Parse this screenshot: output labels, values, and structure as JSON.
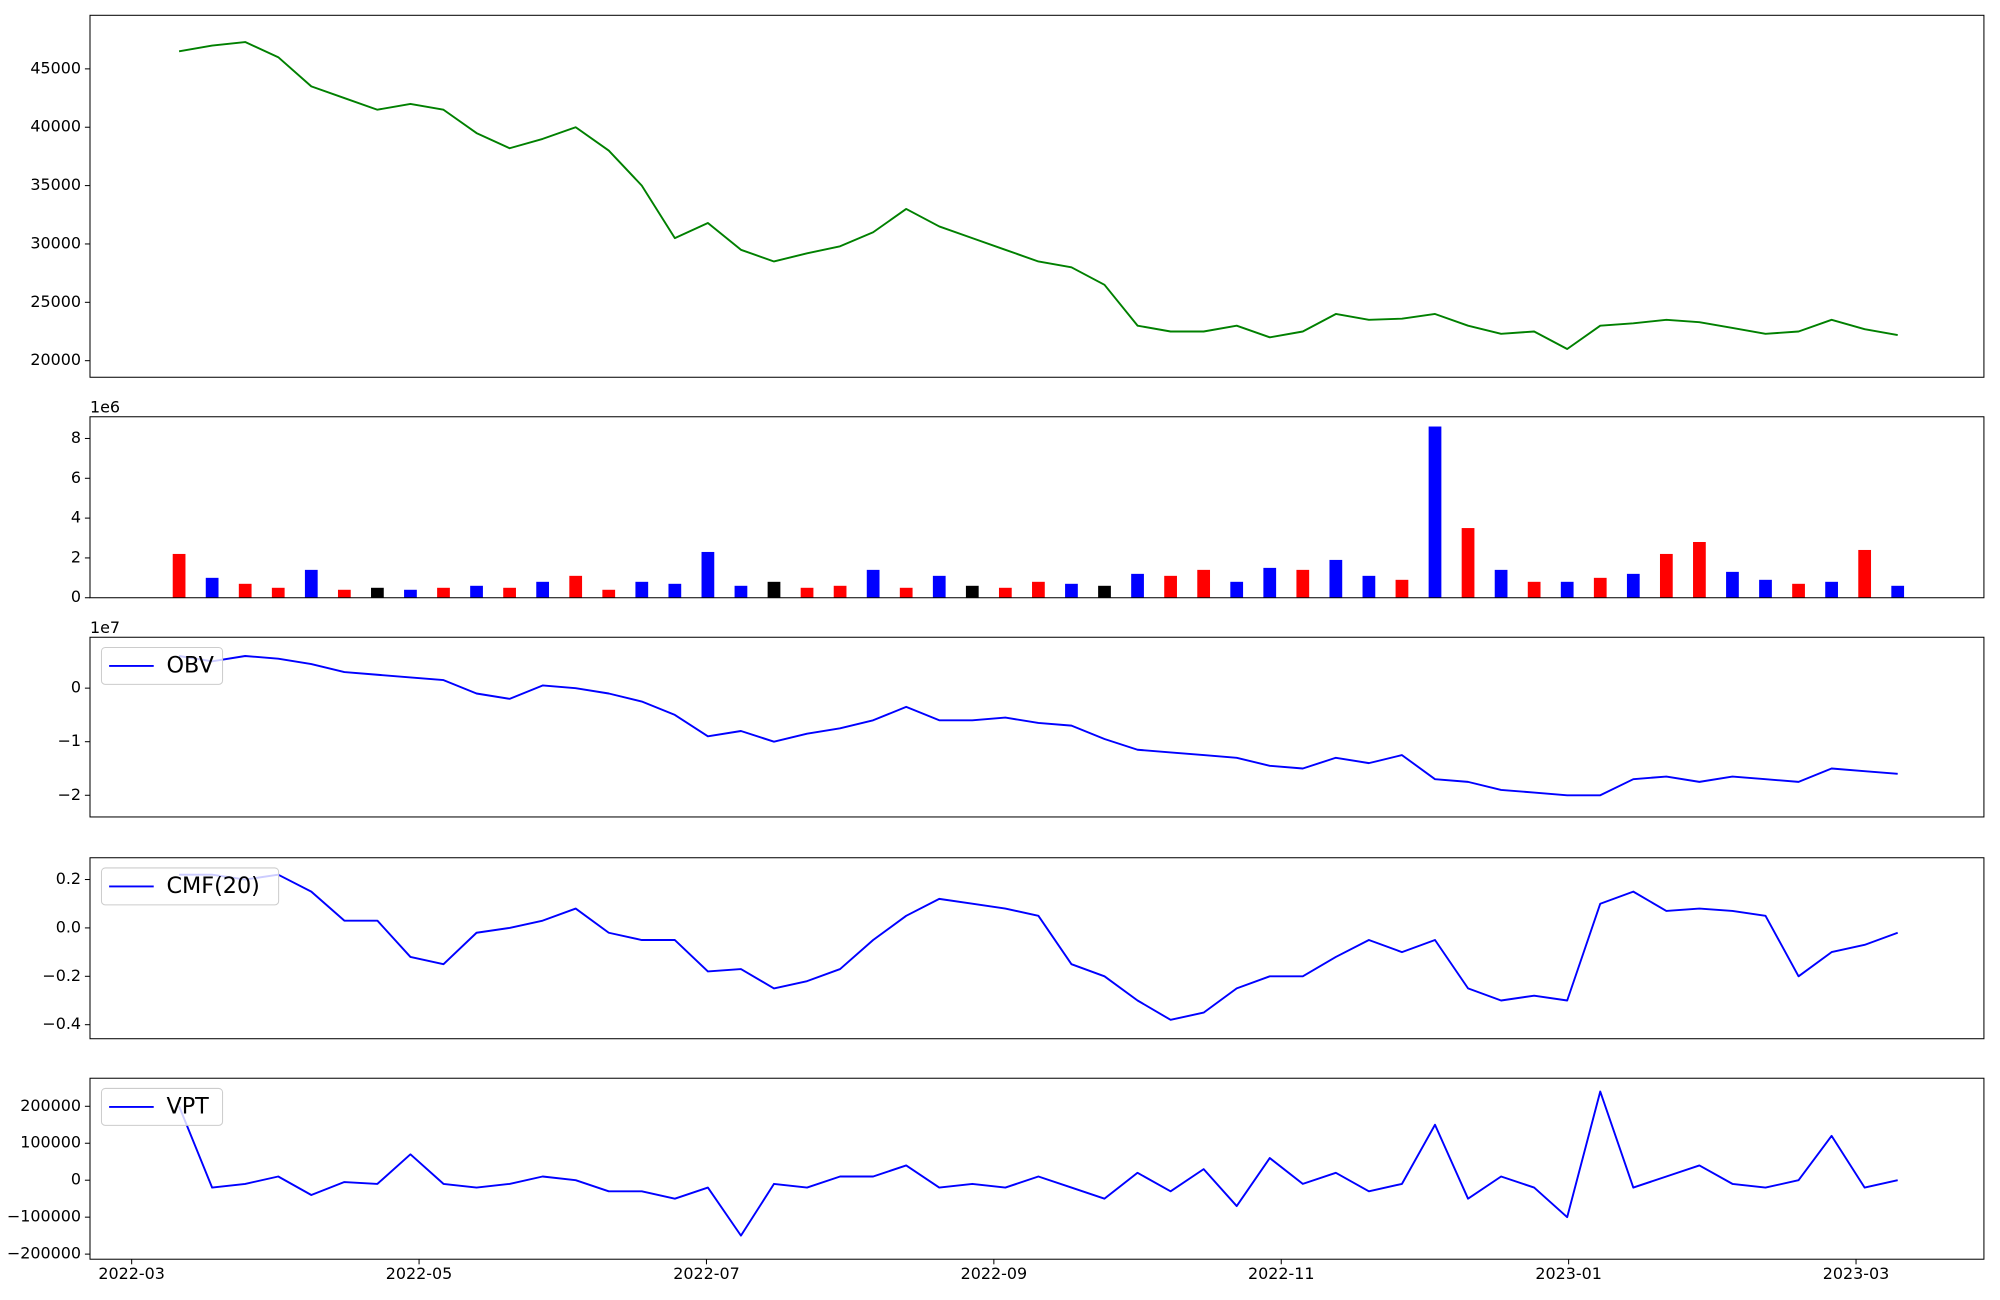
{
  "chart_data": [
    {
      "type": "line",
      "color": "#008000",
      "x": [
        0.33,
        0.56,
        0.79,
        1.02,
        1.25,
        1.48,
        1.71,
        1.94,
        2.17,
        2.4,
        2.63,
        2.86,
        3.09,
        3.32,
        3.55,
        3.78,
        4.01,
        4.24,
        4.47,
        4.7,
        4.93,
        5.16,
        5.39,
        5.62,
        5.85,
        6.08,
        6.31,
        6.54,
        6.77,
        7.0,
        7.23,
        7.46,
        7.69,
        7.92,
        8.15,
        8.38,
        8.61,
        8.84,
        9.07,
        9.3,
        9.53,
        9.76,
        9.99,
        10.22,
        10.45,
        10.68,
        10.91,
        11.14,
        11.37,
        11.6,
        11.83,
        12.06,
        12.29
      ],
      "values": [
        46500,
        47000,
        47300,
        46000,
        43500,
        42500,
        41500,
        42000,
        41500,
        39500,
        38200,
        39000,
        40000,
        38000,
        35000,
        30500,
        31800,
        29500,
        28500,
        29200,
        29800,
        31000,
        33000,
        31500,
        30500,
        29500,
        28500,
        28000,
        26500,
        23000,
        22500,
        22500,
        23000,
        22000,
        22500,
        24000,
        23500,
        23600,
        24000,
        23000,
        22300,
        22500,
        21000,
        23000,
        23200,
        23500,
        23300,
        22800,
        22300,
        22500,
        23500,
        22700,
        22200
      ],
      "xlim": [
        -0.29,
        12.89
      ],
      "ylim": [
        18580,
        49590
      ],
      "yticks": [
        20000,
        25000,
        30000,
        35000,
        40000,
        45000
      ]
    },
    {
      "type": "bar",
      "offset_label": "1e6",
      "x": [
        0.33,
        0.56,
        0.79,
        1.02,
        1.25,
        1.48,
        1.71,
        1.94,
        2.17,
        2.4,
        2.63,
        2.86,
        3.09,
        3.32,
        3.55,
        3.78,
        4.01,
        4.24,
        4.47,
        4.7,
        4.93,
        5.16,
        5.39,
        5.62,
        5.85,
        6.08,
        6.31,
        6.54,
        6.77,
        7.0,
        7.23,
        7.46,
        7.69,
        7.92,
        8.15,
        8.38,
        8.61,
        8.84,
        9.07,
        9.3,
        9.53,
        9.76,
        9.99,
        10.22,
        10.45,
        10.68,
        10.91,
        11.14,
        11.37,
        11.6,
        11.83,
        12.06,
        12.29
      ],
      "values": [
        2200000,
        1000000,
        700000,
        500000,
        1400000,
        400000,
        500000,
        400000,
        500000,
        600000,
        500000,
        800000,
        1100000,
        400000,
        800000,
        700000,
        2300000,
        600000,
        800000,
        500000,
        600000,
        1400000,
        500000,
        1100000,
        600000,
        500000,
        800000,
        700000,
        600000,
        1200000,
        1100000,
        1400000,
        800000,
        1500000,
        1400000,
        1900000,
        1100000,
        900000,
        8600000,
        3500000,
        1400000,
        800000,
        800000,
        1000000,
        1200000,
        2200000,
        2800000,
        1300000,
        900000,
        700000,
        800000,
        2400000,
        600000
      ],
      "colors": [
        "red",
        "blue",
        "red",
        "red",
        "blue",
        "red",
        "black",
        "blue",
        "red",
        "blue",
        "red",
        "blue",
        "red",
        "red",
        "blue",
        "blue",
        "blue",
        "blue",
        "black",
        "red",
        "red",
        "blue",
        "red",
        "blue",
        "black",
        "red",
        "red",
        "blue",
        "black",
        "blue",
        "red",
        "red",
        "blue",
        "blue",
        "red",
        "blue",
        "blue",
        "red",
        "blue",
        "red",
        "blue",
        "red",
        "blue",
        "red",
        "blue",
        "red",
        "red",
        "blue",
        "blue",
        "red",
        "blue",
        "red",
        "blue"
      ],
      "xlim": [
        -0.29,
        12.89
      ],
      "ylim": [
        0,
        9090000
      ],
      "yticks": [
        {
          "value": 0,
          "label": "0"
        },
        {
          "value": 2000000,
          "label": "2"
        },
        {
          "value": 4000000,
          "label": "4"
        },
        {
          "value": 6000000,
          "label": "6"
        },
        {
          "value": 8000000,
          "label": "8"
        }
      ]
    },
    {
      "type": "line",
      "offset_label": "1e7",
      "legend": "upper left",
      "x": [
        0.33,
        0.56,
        0.79,
        1.02,
        1.25,
        1.48,
        1.71,
        1.94,
        2.17,
        2.4,
        2.63,
        2.86,
        3.09,
        3.32,
        3.55,
        3.78,
        4.01,
        4.24,
        4.47,
        4.7,
        4.93,
        5.16,
        5.39,
        5.62,
        5.85,
        6.08,
        6.31,
        6.54,
        6.77,
        7.0,
        7.23,
        7.46,
        7.69,
        7.92,
        8.15,
        8.38,
        8.61,
        8.84,
        9.07,
        9.3,
        9.53,
        9.76,
        9.99,
        10.22,
        10.45,
        10.68,
        10.91,
        11.14,
        11.37,
        11.6,
        11.83,
        12.06,
        12.29
      ],
      "series": [
        {
          "name": "OBV",
          "color": "#0000ff",
          "values": [
            6000000,
            5000000,
            6000000,
            5500000,
            4500000,
            3000000,
            2500000,
            2000000,
            1500000,
            -1000000,
            -2000000,
            500000,
            0,
            -1000000,
            -2500000,
            -5000000,
            -9000000,
            -8000000,
            -10000000,
            -8500000,
            -7500000,
            -6000000,
            -3500000,
            -6000000,
            -6000000,
            -5500000,
            -6500000,
            -7000000,
            -9500000,
            -11500000,
            -12000000,
            -12500000,
            -13000000,
            -14500000,
            -15000000,
            -13000000,
            -14000000,
            -12500000,
            -17000000,
            -17500000,
            -19000000,
            -19500000,
            -20000000,
            -20000000,
            -17000000,
            -16500000,
            -17500000,
            -16500000,
            -17000000,
            -17500000,
            -15000000,
            -15500000,
            -16000000
          ]
        }
      ],
      "xlim": [
        -0.29,
        12.89
      ],
      "ylim": [
        -24050000,
        9500000
      ],
      "yticks": [
        {
          "value": -20000000,
          "label": "−2"
        },
        {
          "value": -10000000,
          "label": "−1"
        },
        {
          "value": 0,
          "label": "0"
        }
      ]
    },
    {
      "type": "line",
      "legend": "upper left",
      "x": [
        0.33,
        0.56,
        0.79,
        1.02,
        1.25,
        1.48,
        1.71,
        1.94,
        2.17,
        2.4,
        2.63,
        2.86,
        3.09,
        3.32,
        3.55,
        3.78,
        4.01,
        4.24,
        4.47,
        4.7,
        4.93,
        5.16,
        5.39,
        5.62,
        5.85,
        6.08,
        6.31,
        6.54,
        6.77,
        7.0,
        7.23,
        7.46,
        7.69,
        7.92,
        8.15,
        8.38,
        8.61,
        8.84,
        9.07,
        9.3,
        9.53,
        9.76,
        9.99,
        10.22,
        10.45,
        10.68,
        10.91,
        11.14,
        11.37,
        11.6,
        11.83,
        12.06,
        12.29
      ],
      "series": [
        {
          "name": "CMF(20)",
          "color": "#0000ff",
          "values": [
            0.22,
            0.22,
            0.2,
            0.22,
            0.15,
            0.03,
            0.03,
            -0.12,
            -0.15,
            -0.02,
            0.0,
            0.03,
            0.08,
            -0.02,
            -0.05,
            -0.05,
            -0.18,
            -0.17,
            -0.25,
            -0.22,
            -0.17,
            -0.05,
            0.05,
            0.12,
            0.1,
            0.08,
            0.05,
            -0.15,
            -0.2,
            -0.3,
            -0.38,
            -0.35,
            -0.25,
            -0.2,
            -0.2,
            -0.12,
            -0.05,
            -0.1,
            -0.05,
            -0.25,
            -0.3,
            -0.28,
            -0.3,
            0.1,
            0.15,
            0.07,
            0.08,
            0.07,
            0.05,
            -0.2,
            -0.1,
            -0.07,
            -0.02
          ]
        }
      ],
      "xlim": [
        -0.29,
        12.89
      ],
      "ylim": [
        -0.458,
        0.29
      ],
      "yticks": [
        {
          "value": -0.4,
          "label": "−0.4"
        },
        {
          "value": -0.2,
          "label": "−0.2"
        },
        {
          "value": 0,
          "label": "0.0"
        },
        0.2
      ]
    },
    {
      "type": "line",
      "legend": "upper left",
      "x": [
        0.33,
        0.56,
        0.79,
        1.02,
        1.25,
        1.48,
        1.71,
        1.94,
        2.17,
        2.4,
        2.63,
        2.86,
        3.09,
        3.32,
        3.55,
        3.78,
        4.01,
        4.24,
        4.47,
        4.7,
        4.93,
        5.16,
        5.39,
        5.62,
        5.85,
        6.08,
        6.31,
        6.54,
        6.77,
        7.0,
        7.23,
        7.46,
        7.69,
        7.92,
        8.15,
        8.38,
        8.61,
        8.84,
        9.07,
        9.3,
        9.53,
        9.76,
        9.99,
        10.22,
        10.45,
        10.68,
        10.91,
        11.14,
        11.37,
        11.6,
        11.83,
        12.06,
        12.29
      ],
      "series": [
        {
          "name": "VPT",
          "color": "#0000ff",
          "values": [
            200000,
            -20000,
            -10000,
            10000,
            -40000,
            -5000,
            -10000,
            70000,
            -10000,
            -20000,
            -10000,
            10000,
            0,
            -30000,
            -30000,
            -50000,
            -20000,
            -150000,
            -10000,
            -20000,
            10000,
            10000,
            40000,
            -20000,
            -10000,
            -20000,
            10000,
            -20000,
            -50000,
            20000,
            -30000,
            30000,
            -70000,
            60000,
            -10000,
            20000,
            -30000,
            -10000,
            150000,
            -50000,
            10000,
            -20000,
            -100000,
            240000,
            -20000,
            10000,
            40000,
            -10000,
            -20000,
            0,
            120000,
            -20000,
            0
          ]
        }
      ],
      "xlim": [
        -0.29,
        12.89
      ],
      "ylim": [
        -213800,
        275900
      ],
      "yticks": [
        {
          "value": -200000,
          "label": "−200000"
        },
        {
          "value": -100000,
          "label": "−100000"
        },
        0,
        100000,
        200000
      ],
      "xticks": [
        {
          "value": 0,
          "label": "2022-03"
        },
        {
          "value": 2,
          "label": "2022-05"
        },
        {
          "value": 4,
          "label": "2022-07"
        },
        {
          "value": 6,
          "label": "2022-09"
        },
        {
          "value": 8,
          "label": "2022-11"
        },
        {
          "value": 10,
          "label": "2023-01"
        },
        {
          "value": 12,
          "label": "2023-03"
        }
      ]
    }
  ]
}
